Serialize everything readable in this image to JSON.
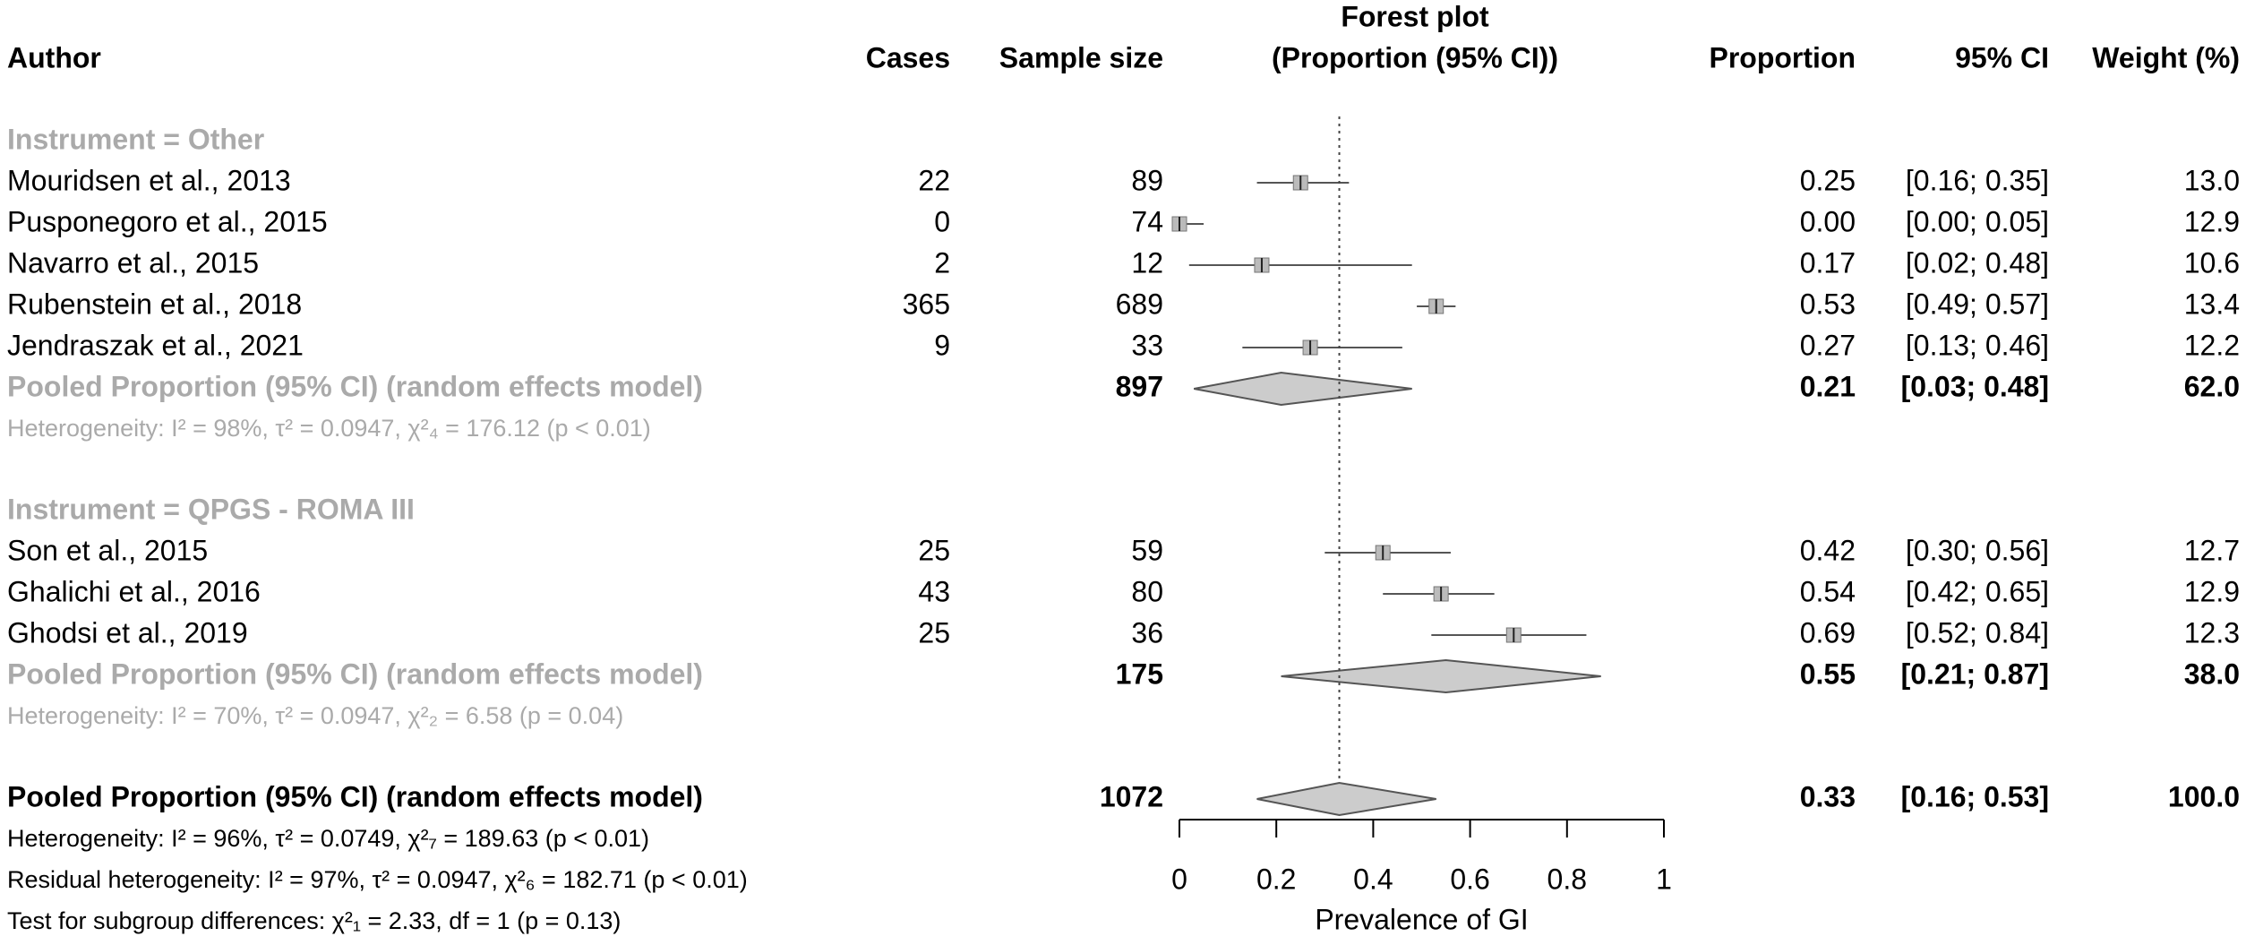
{
  "chart_data": {
    "type": "forest",
    "columns": {
      "author": "Author",
      "cases": "Cases",
      "n": "Sample size",
      "plot_title": "Forest plot",
      "plot_subtitle": "(Proportion (95% CI))",
      "proportion": "Proportion",
      "ci": "95% CI",
      "weight": "Weight (%)"
    },
    "xlim": [
      0,
      1
    ],
    "xticks": [
      0,
      0.2,
      0.4,
      0.6,
      0.8,
      1
    ],
    "xlabel": "Prevalence of GI",
    "subgroups": [
      {
        "label": "Instrument = Other",
        "studies": [
          {
            "author": "Mouridsen et al., 2013",
            "cases": 22,
            "n": 89,
            "proportion": 0.25,
            "ci": [
              0.16,
              0.35
            ],
            "weight": 13.0,
            "value_labels": {
              "proportion": "0.25",
              "ci": "[0.16; 0.35]",
              "weight": "13.0"
            }
          },
          {
            "author": "Pusponegoro et al., 2015",
            "cases": 0,
            "n": 74,
            "proportion": 0.0,
            "ci": [
              0.0,
              0.05
            ],
            "weight": 12.9,
            "value_labels": {
              "proportion": "0.00",
              "ci": "[0.00; 0.05]",
              "weight": "12.9"
            }
          },
          {
            "author": "Navarro et al., 2015",
            "cases": 2,
            "n": 12,
            "proportion": 0.17,
            "ci": [
              0.02,
              0.48
            ],
            "weight": 10.6,
            "value_labels": {
              "proportion": "0.17",
              "ci": "[0.02; 0.48]",
              "weight": "10.6"
            }
          },
          {
            "author": "Rubenstein et al., 2018",
            "cases": 365,
            "n": 689,
            "proportion": 0.53,
            "ci": [
              0.49,
              0.57
            ],
            "weight": 13.4,
            "value_labels": {
              "proportion": "0.53",
              "ci": "[0.49; 0.57]",
              "weight": "13.4"
            }
          },
          {
            "author": "Jendraszak et al., 2021",
            "cases": 9,
            "n": 33,
            "proportion": 0.27,
            "ci": [
              0.13,
              0.46
            ],
            "weight": 12.2,
            "value_labels": {
              "proportion": "0.27",
              "ci": "[0.13; 0.46]",
              "weight": "12.2"
            }
          }
        ],
        "pooled": {
          "label": "Pooled Proportion (95% CI) (random effects model)",
          "n": 897,
          "proportion": 0.21,
          "ci": [
            0.03,
            0.48
          ],
          "weight": 62.0,
          "value_labels": {
            "proportion": "0.21",
            "ci": "[0.03; 0.48]",
            "weight": "62.0"
          }
        },
        "heterogeneity": "Heterogeneity: I² = 98%, τ² = 0.0947, χ²₄ = 176.12 (p < 0.01)"
      },
      {
        "label": "Instrument = QPGS - ROMA III",
        "studies": [
          {
            "author": "Son et al., 2015",
            "cases": 25,
            "n": 59,
            "proportion": 0.42,
            "ci": [
              0.3,
              0.56
            ],
            "weight": 12.7,
            "value_labels": {
              "proportion": "0.42",
              "ci": "[0.30; 0.56]",
              "weight": "12.7"
            }
          },
          {
            "author": "Ghalichi et al., 2016",
            "cases": 43,
            "n": 80,
            "proportion": 0.54,
            "ci": [
              0.42,
              0.65
            ],
            "weight": 12.9,
            "value_labels": {
              "proportion": "0.54",
              "ci": "[0.42; 0.65]",
              "weight": "12.9"
            }
          },
          {
            "author": "Ghodsi et al., 2019",
            "cases": 25,
            "n": 36,
            "proportion": 0.69,
            "ci": [
              0.52,
              0.84
            ],
            "weight": 12.3,
            "value_labels": {
              "proportion": "0.69",
              "ci": "[0.52; 0.84]",
              "weight": "12.3"
            }
          }
        ],
        "pooled": {
          "label": "Pooled Proportion (95% CI) (random effects model)",
          "n": 175,
          "proportion": 0.55,
          "ci": [
            0.21,
            0.87
          ],
          "weight": 38.0,
          "value_labels": {
            "proportion": "0.55",
            "ci": "[0.21; 0.87]",
            "weight": "38.0"
          }
        },
        "heterogeneity": "Heterogeneity: I² = 70%, τ² = 0.0947, χ²₂ = 6.58 (p = 0.04)"
      }
    ],
    "overall": {
      "label": "Pooled Proportion (95% CI) (random effects model)",
      "n": 1072,
      "proportion": 0.33,
      "ci": [
        0.16,
        0.53
      ],
      "weight": 100.0,
      "value_labels": {
        "proportion": "0.33",
        "ci": "[0.16; 0.53]",
        "weight": "100.0"
      },
      "notes": [
        "Heterogeneity: I² = 96%, τ² = 0.0749, χ²₇ = 189.63 (p < 0.01)",
        "Residual heterogeneity: I² = 97%, τ² = 0.0947, χ²₆ = 182.71 (p < 0.01)",
        "Test for subgroup differences: χ²₁ = 2.33, df = 1 (p = 0.13)"
      ]
    }
  }
}
